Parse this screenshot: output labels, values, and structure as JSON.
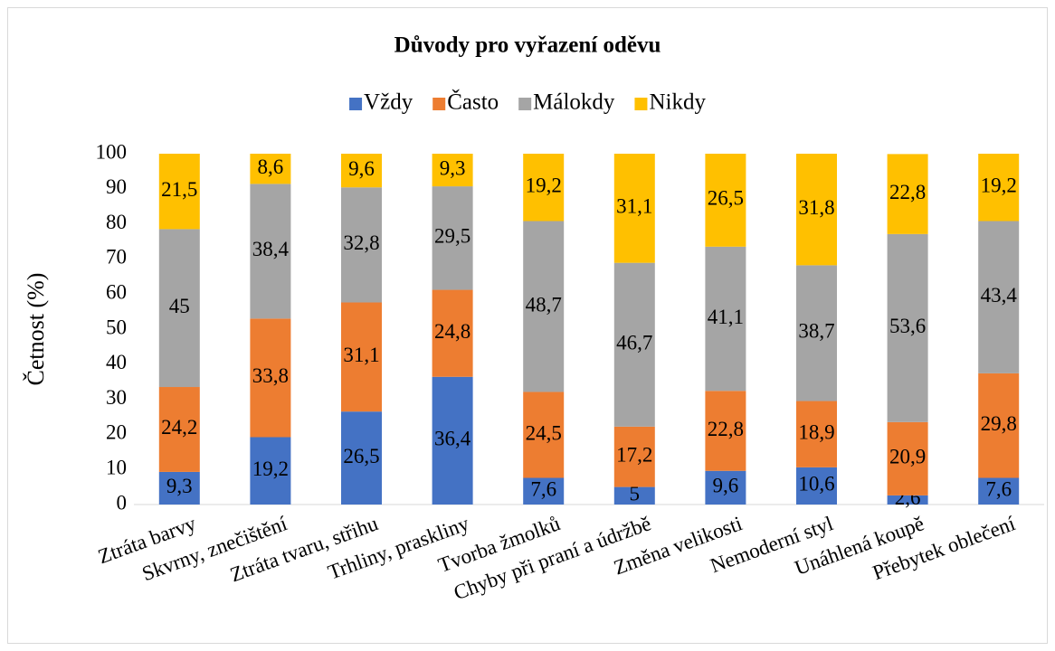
{
  "chart_data": {
    "type": "stacked_bar",
    "title": "Důvody pro vyřazení oděvu",
    "ylabel": "Četnost (%)",
    "categories": [
      "Ztráta barvy",
      "Skvrny, znečištění",
      "Ztráta tvaru, střihu",
      "Trhliny, praskliny",
      "Tvorba žmolků",
      "Chyby při praní a údržbě",
      "Změna velikosti",
      "Nemoderní styl",
      "Unáhlená koupě",
      "Přebytek oblečení"
    ],
    "series": [
      {
        "name": "Vždy",
        "color": "#4472c4",
        "values": [
          9.3,
          19.2,
          26.5,
          36.4,
          7.6,
          5,
          9.6,
          10.6,
          2.6,
          7.6
        ],
        "value_labels": [
          "9,3",
          "19,2",
          "26,5",
          "36,4",
          "7,6",
          "5",
          "9,6",
          "10,6",
          "2,6",
          "7,6"
        ]
      },
      {
        "name": "Často",
        "color": "#ed7d31",
        "values": [
          24.2,
          33.8,
          31.1,
          24.8,
          24.5,
          17.2,
          22.8,
          18.9,
          20.9,
          29.8
        ],
        "value_labels": [
          "24,2",
          "33,8",
          "31,1",
          "24,8",
          "24,5",
          "17,2",
          "22,8",
          "18,9",
          "20,9",
          "29,8"
        ]
      },
      {
        "name": "Málokdy",
        "color": "#a5a5a5",
        "values": [
          45,
          38.4,
          32.8,
          29.5,
          48.7,
          46.7,
          41.1,
          38.7,
          53.6,
          43.4
        ],
        "value_labels": [
          "45",
          "38,4",
          "32,8",
          "29,5",
          "48,7",
          "46,7",
          "41,1",
          "38,7",
          "53,6",
          "43,4"
        ]
      },
      {
        "name": "Nikdy",
        "color": "#ffc000",
        "values": [
          21.5,
          8.6,
          9.6,
          9.3,
          19.2,
          31.1,
          26.5,
          31.8,
          22.8,
          19.2
        ],
        "value_labels": [
          "21,5",
          "8,6",
          "9,6",
          "9,3",
          "19,2",
          "31,1",
          "26,5",
          "31,8",
          "22,8",
          "19,2"
        ]
      }
    ],
    "ylim": [
      0,
      100
    ],
    "yticks": [
      0,
      10,
      20,
      30,
      40,
      50,
      60,
      70,
      80,
      90,
      100
    ],
    "grid": false,
    "legend": "top"
  }
}
